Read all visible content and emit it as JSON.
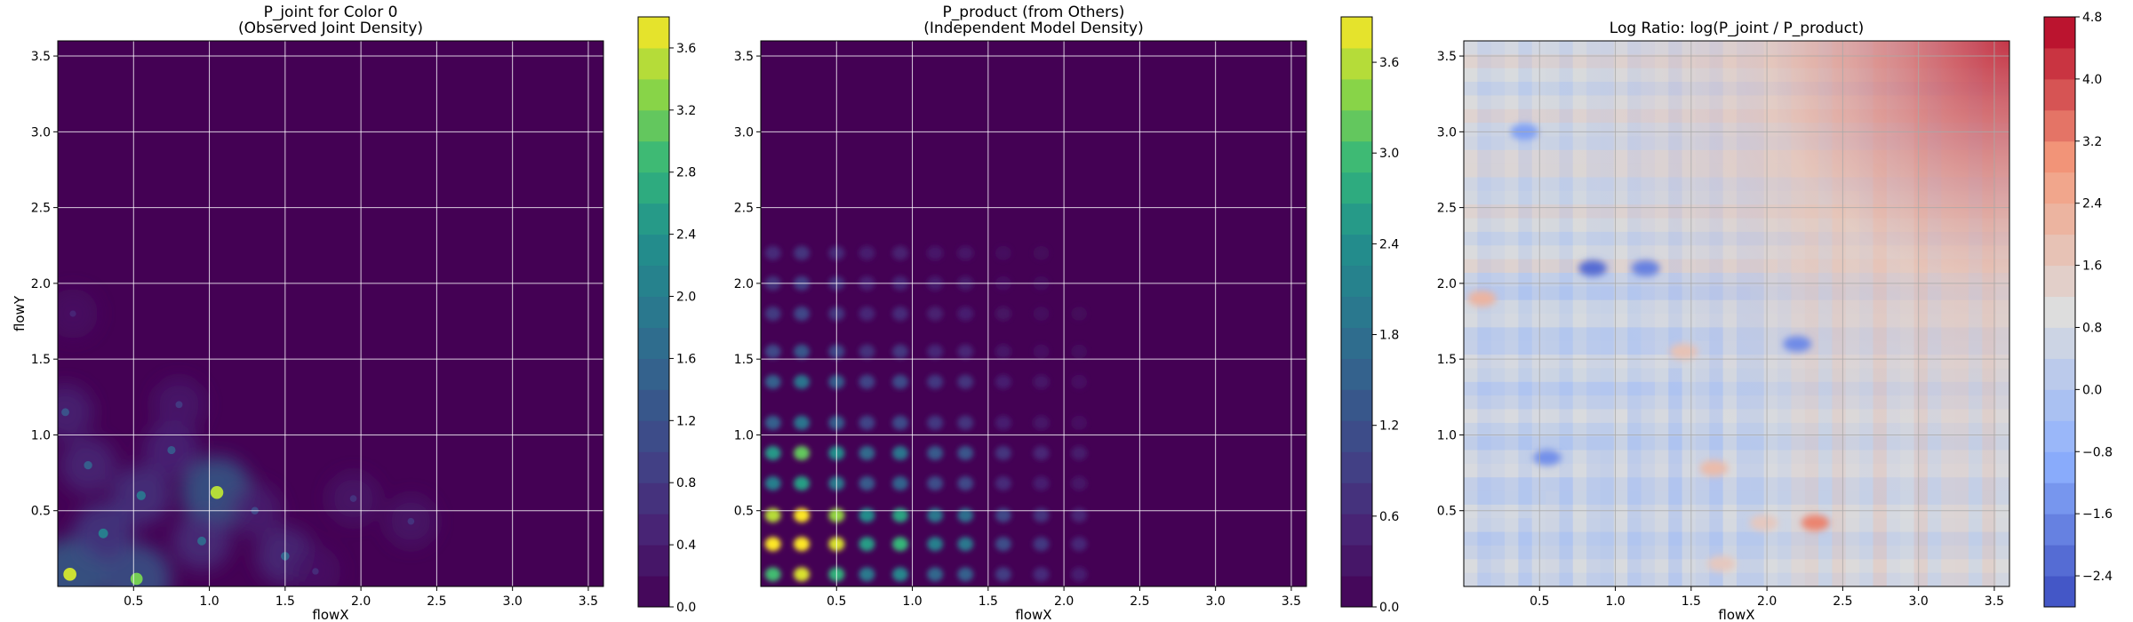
{
  "chart_data": [
    {
      "type": "heatmap",
      "panel": "p_joint",
      "title": "P_joint for Color 0",
      "subtitle": "(Observed Joint Density)",
      "xlabel": "flowX",
      "ylabel": "flowY",
      "xlim": [
        0.0,
        3.6
      ],
      "ylim": [
        0.0,
        3.6
      ],
      "x_ticks": [
        "0.5",
        "1.0",
        "1.5",
        "2.0",
        "2.5",
        "3.0",
        "3.5"
      ],
      "y_ticks": [
        "0.5",
        "1.0",
        "1.5",
        "2.0",
        "2.5",
        "3.0",
        "3.5"
      ],
      "colormap": "viridis",
      "grid": true,
      "colorbar": {
        "vmin": 0.0,
        "vmax": 3.8,
        "ticks": [
          "0.0",
          "0.4",
          "0.8",
          "1.2",
          "1.6",
          "2.0",
          "2.4",
          "2.8",
          "3.2",
          "3.6"
        ]
      },
      "hotspots": [
        {
          "x": 0.08,
          "y": 0.08,
          "value": 3.6
        },
        {
          "x": 0.52,
          "y": 0.05,
          "value": 3.2
        },
        {
          "x": 1.05,
          "y": 0.62,
          "value": 3.5
        },
        {
          "x": 0.3,
          "y": 0.35,
          "value": 2.0
        },
        {
          "x": 0.55,
          "y": 0.6,
          "value": 1.8
        },
        {
          "x": 0.2,
          "y": 0.8,
          "value": 1.4
        },
        {
          "x": 0.75,
          "y": 0.9,
          "value": 1.3
        },
        {
          "x": 0.95,
          "y": 0.3,
          "value": 1.6
        },
        {
          "x": 1.5,
          "y": 0.2,
          "value": 1.5
        },
        {
          "x": 1.3,
          "y": 0.5,
          "value": 1.0
        },
        {
          "x": 0.05,
          "y": 1.15,
          "value": 1.2
        },
        {
          "x": 0.8,
          "y": 1.2,
          "value": 0.8
        },
        {
          "x": 1.95,
          "y": 0.58,
          "value": 0.7
        },
        {
          "x": 2.33,
          "y": 0.43,
          "value": 0.7
        },
        {
          "x": 0.1,
          "y": 1.8,
          "value": 0.5
        },
        {
          "x": 1.7,
          "y": 0.1,
          "value": 0.6
        }
      ]
    },
    {
      "type": "heatmap",
      "panel": "p_product",
      "title": "P_product (from Others)",
      "subtitle": "(Independent Model Density)",
      "xlabel": "flowX",
      "xlim": [
        0.0,
        3.6
      ],
      "ylim": [
        0.0,
        3.6
      ],
      "x_ticks": [
        "0.5",
        "1.0",
        "1.5",
        "2.0",
        "2.5",
        "3.0",
        "3.5"
      ],
      "y_ticks": [
        "0.5",
        "1.0",
        "1.5",
        "2.0",
        "2.5",
        "3.0",
        "3.5"
      ],
      "colormap": "viridis",
      "grid": true,
      "colorbar": {
        "vmin": 0.0,
        "vmax": 3.9,
        "ticks": [
          "0.0",
          "0.6",
          "1.2",
          "1.8",
          "2.4",
          "3.0",
          "3.6"
        ]
      },
      "x_marginal": [
        {
          "x": 0.08,
          "w": 2.4
        },
        {
          "x": 0.27,
          "w": 3.0
        },
        {
          "x": 0.5,
          "w": 2.3
        },
        {
          "x": 0.7,
          "w": 1.6
        },
        {
          "x": 0.92,
          "w": 1.8
        },
        {
          "x": 1.15,
          "w": 1.3
        },
        {
          "x": 1.35,
          "w": 1.2
        },
        {
          "x": 1.6,
          "w": 0.7
        },
        {
          "x": 1.85,
          "w": 0.5
        },
        {
          "x": 2.1,
          "w": 0.35
        }
      ],
      "y_marginal": [
        {
          "y": 0.08,
          "w": 2.0
        },
        {
          "y": 0.28,
          "w": 2.6
        },
        {
          "y": 0.47,
          "w": 2.4
        },
        {
          "y": 0.68,
          "w": 1.4
        },
        {
          "y": 0.88,
          "w": 1.7
        },
        {
          "y": 1.08,
          "w": 1.0
        },
        {
          "y": 1.35,
          "w": 1.0
        },
        {
          "y": 1.55,
          "w": 0.7
        },
        {
          "y": 1.8,
          "w": 0.55
        },
        {
          "y": 2.0,
          "w": 0.5
        },
        {
          "y": 2.2,
          "w": 0.4
        }
      ]
    },
    {
      "type": "heatmap",
      "panel": "log_ratio",
      "title": "Log Ratio: log(P_joint / P_product)",
      "xlabel": "flowX",
      "xlim": [
        0.0,
        3.6
      ],
      "ylim": [
        0.0,
        3.6
      ],
      "x_ticks": [
        "0.5",
        "1.0",
        "1.5",
        "2.0",
        "2.5",
        "3.0",
        "3.5"
      ],
      "y_ticks": [
        "0.5",
        "1.0",
        "1.5",
        "2.0",
        "2.5",
        "3.0",
        "3.5"
      ],
      "colormap": "coolwarm",
      "grid": true,
      "colorbar": {
        "vmin": -2.8,
        "vmax": 4.8,
        "ticks": [
          "−2.4",
          "−1.6",
          "−0.8",
          "0.0",
          "0.8",
          "1.6",
          "2.4",
          "3.2",
          "4.0",
          "4.8"
        ]
      },
      "features": [
        {
          "x": 2.32,
          "y": 0.42,
          "value": 3.2
        },
        {
          "x": 0.12,
          "y": 1.9,
          "value": 2.2
        },
        {
          "x": 1.65,
          "y": 0.78,
          "value": 2.0
        },
        {
          "x": 1.98,
          "y": 0.42,
          "value": 1.6
        },
        {
          "x": 1.7,
          "y": 0.15,
          "value": 1.6
        },
        {
          "x": 1.45,
          "y": 1.55,
          "value": 1.8
        },
        {
          "x": 0.85,
          "y": 2.1,
          "value": -2.2
        },
        {
          "x": 1.2,
          "y": 2.1,
          "value": -1.8
        },
        {
          "x": 0.55,
          "y": 0.85,
          "value": -1.5
        },
        {
          "x": 2.2,
          "y": 1.6,
          "value": -1.6
        },
        {
          "x": 0.4,
          "y": 3.0,
          "value": -1.2
        }
      ]
    }
  ]
}
